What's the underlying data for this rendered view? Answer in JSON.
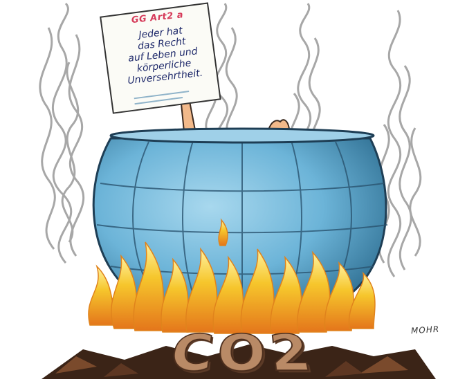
{
  "sign": {
    "header": "GG Art2 a",
    "lines": [
      "Jeder hat",
      "das Recht",
      "auf Leben und",
      "körperliche",
      "Unversehrtheit."
    ]
  },
  "ground_text": "CO2",
  "signature": "MOHR",
  "colors": {
    "pot": "#6cb4d8",
    "pot_dark": "#3f7fa3",
    "flame": "#f6c62c",
    "flame_outer": "#e88a17",
    "smoke": "#8a8a8a",
    "embers": "#3b2417"
  }
}
